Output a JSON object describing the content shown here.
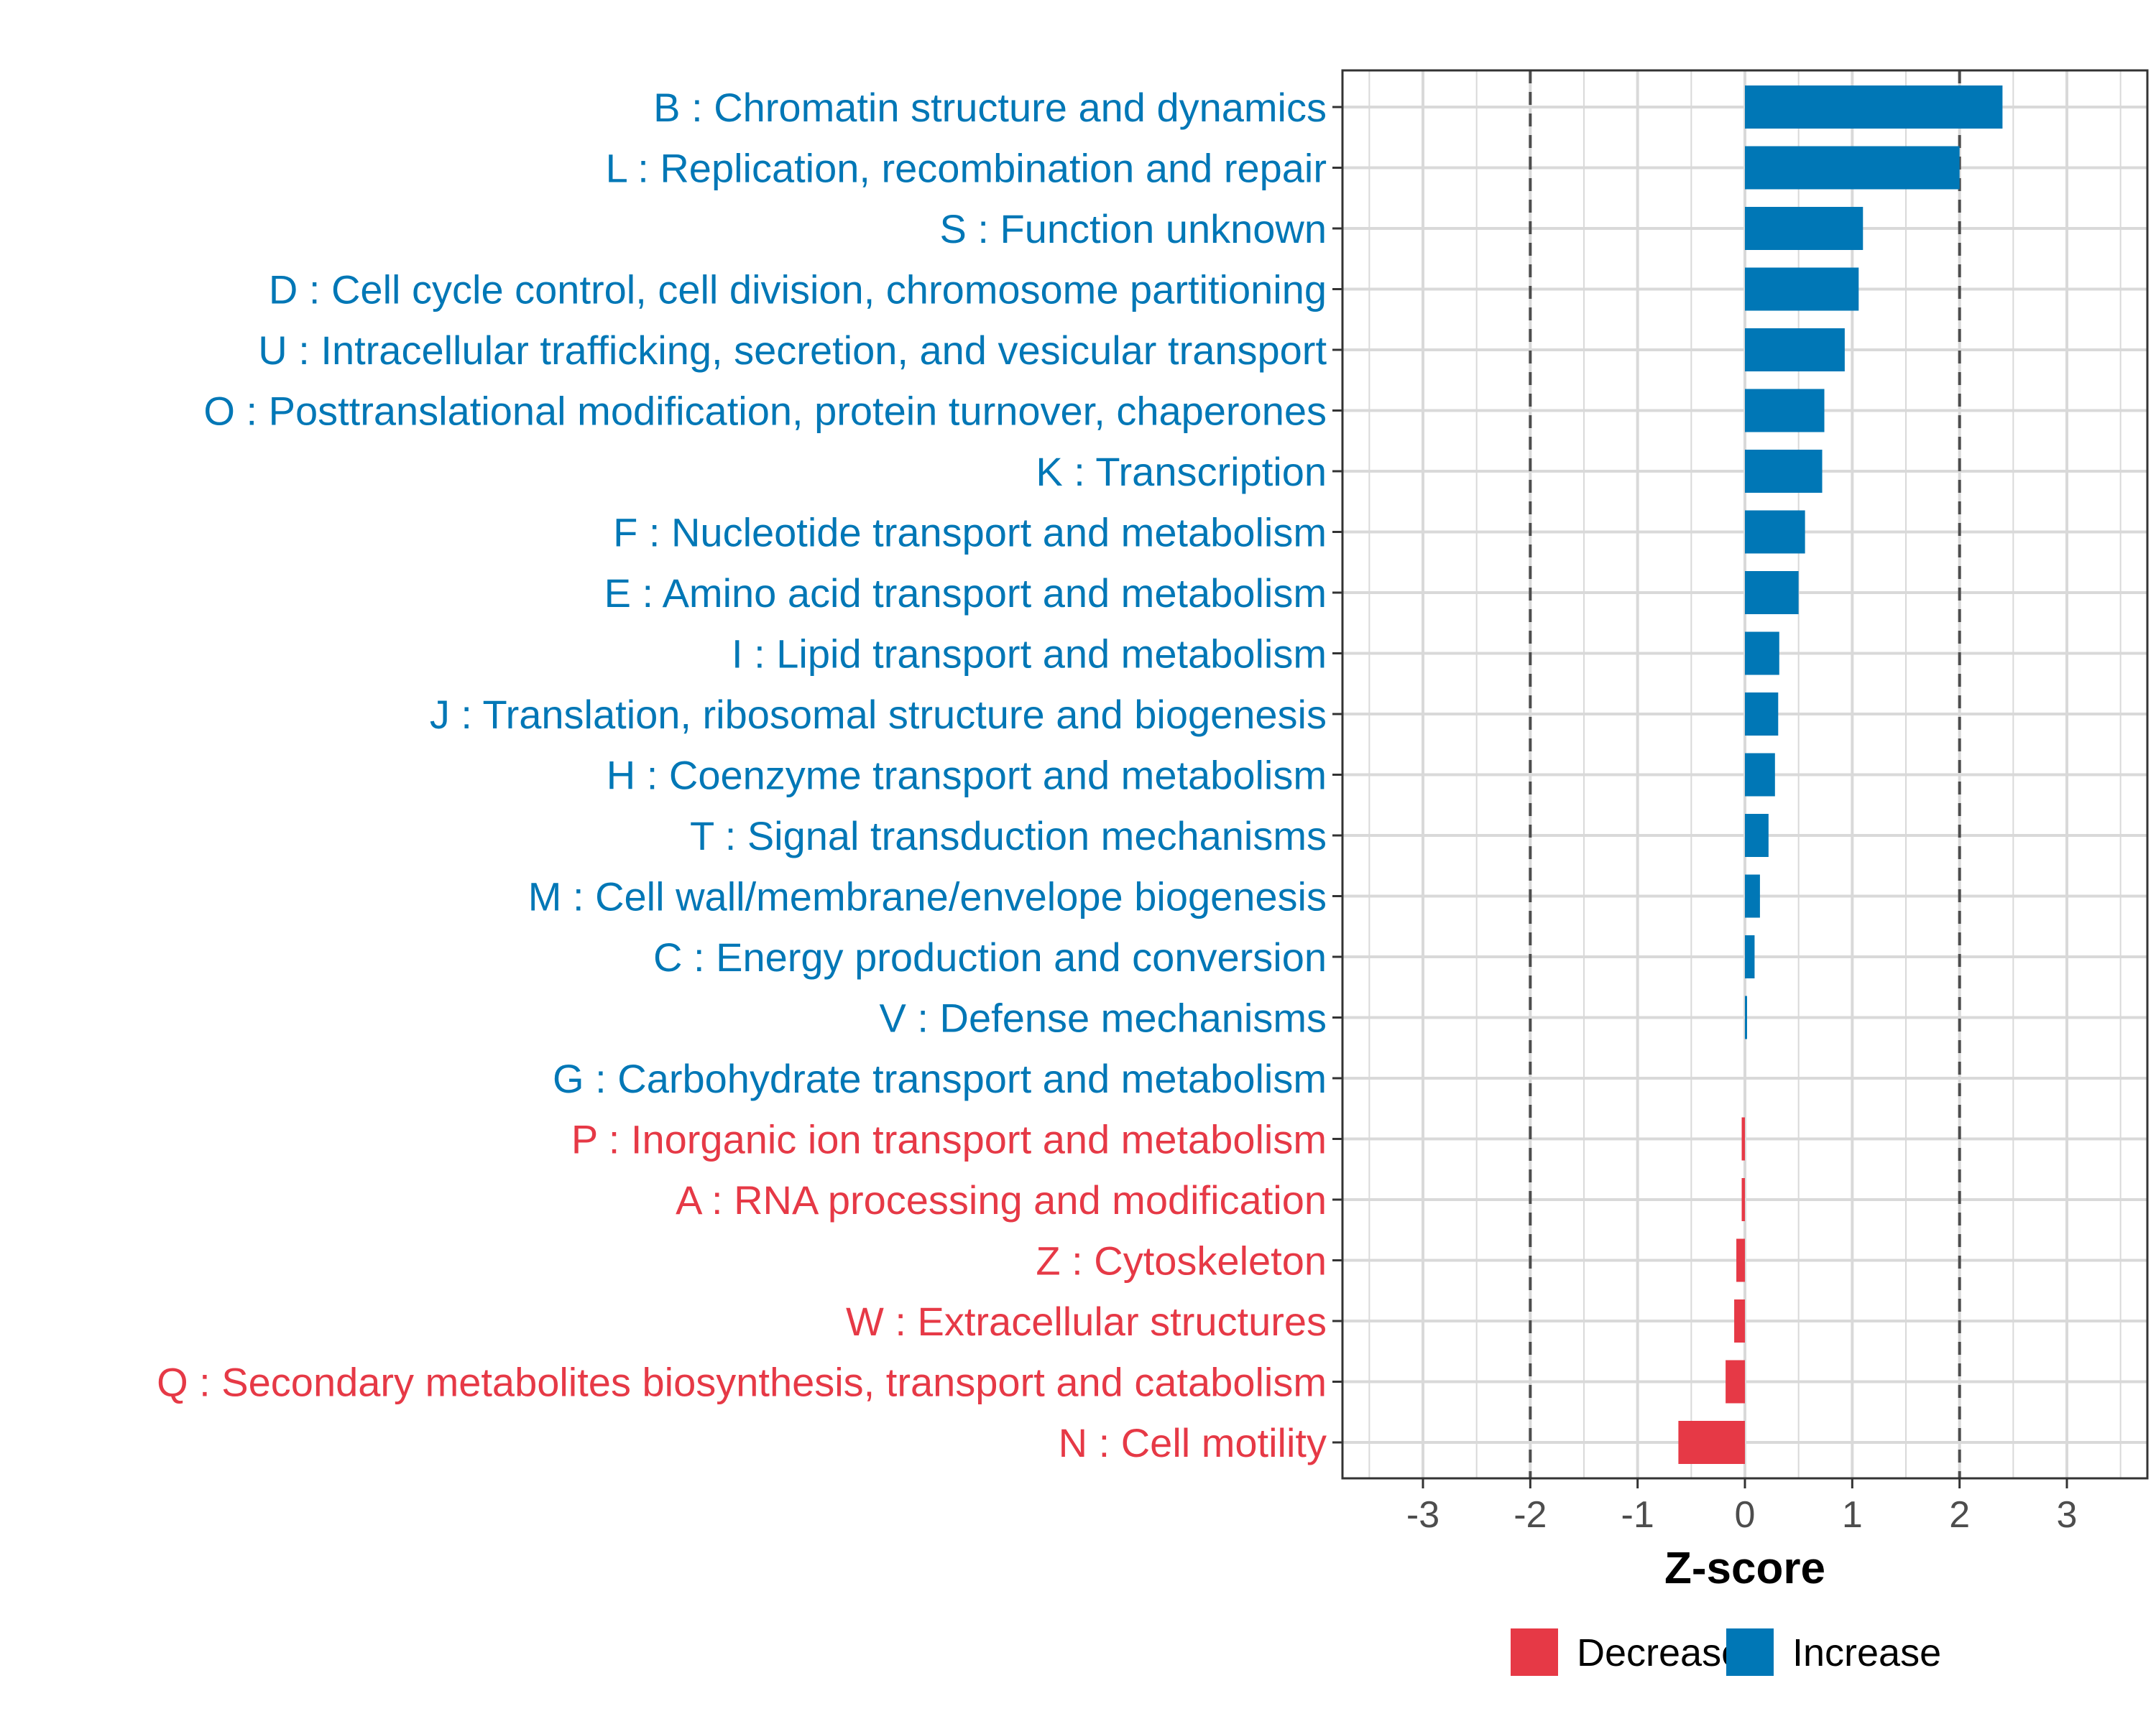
{
  "chart_data": {
    "type": "bar",
    "orientation": "horizontal",
    "title": "",
    "xlabel": "Z-score",
    "ylabel": "",
    "xlim": [
      -3.75,
      3.75
    ],
    "xticks": [
      -3,
      -2,
      -1,
      0,
      1,
      2,
      3
    ],
    "reference_lines": [
      -2,
      2
    ],
    "grid": true,
    "legend_position": "bottom",
    "legend": [
      {
        "name": "Decrease",
        "color": "#E63946"
      },
      {
        "name": "Increase",
        "color": "#0077B6"
      }
    ],
    "categories": [
      "B : Chromatin structure and dynamics",
      "L : Replication, recombination and repair",
      "S : Function unknown",
      "D : Cell cycle control, cell division, chromosome partitioning",
      "U : Intracellular trafficking, secretion, and vesicular transport",
      "O : Posttranslational modification, protein turnover, chaperones",
      "K : Transcription",
      "F : Nucleotide transport and metabolism",
      "E : Amino acid transport and metabolism",
      "I : Lipid transport and metabolism",
      "J : Translation, ribosomal structure and biogenesis",
      "H : Coenzyme transport and metabolism",
      "T : Signal transduction mechanisms",
      "M : Cell wall/membrane/envelope biogenesis",
      "C : Energy production and conversion",
      "V : Defense mechanisms",
      "G : Carbohydrate transport and metabolism",
      "P : Inorganic ion transport and metabolism",
      "A : RNA processing and modification",
      "Z : Cytoskeleton",
      "W : Extracellular structures",
      "Q : Secondary metabolites biosynthesis, transport and catabolism",
      "N : Cell motility"
    ],
    "values": [
      2.4,
      2.0,
      1.1,
      1.06,
      0.93,
      0.74,
      0.72,
      0.56,
      0.5,
      0.32,
      0.31,
      0.28,
      0.22,
      0.14,
      0.09,
      0.02,
      0.0,
      -0.03,
      -0.03,
      -0.08,
      -0.1,
      -0.18,
      -0.62
    ],
    "direction": [
      "Increase",
      "Increase",
      "Increase",
      "Increase",
      "Increase",
      "Increase",
      "Increase",
      "Increase",
      "Increase",
      "Increase",
      "Increase",
      "Increase",
      "Increase",
      "Increase",
      "Increase",
      "Increase",
      "Increase",
      "Decrease",
      "Decrease",
      "Decrease",
      "Decrease",
      "Decrease",
      "Decrease"
    ]
  }
}
